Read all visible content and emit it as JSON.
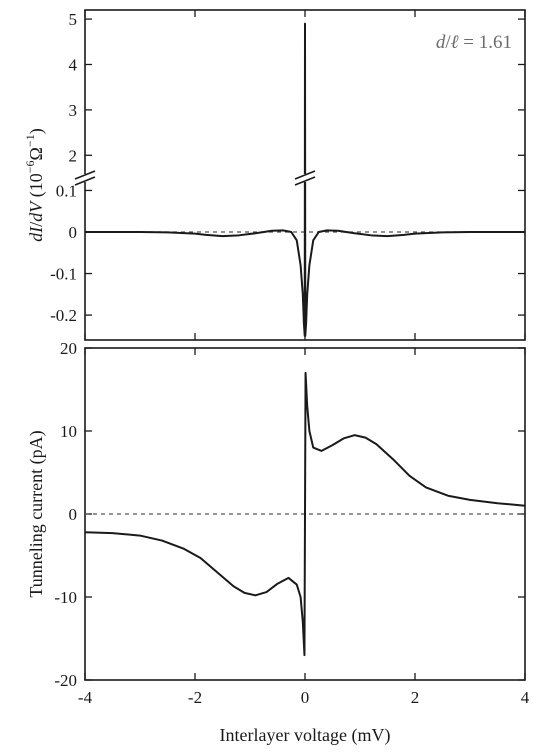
{
  "chart_data": [
    {
      "type": "line",
      "panel": "top",
      "xlim": [
        -4,
        4
      ],
      "ylabel_parts": [
        "dI",
        "/",
        "dV",
        " (10",
        "−6",
        "Ω",
        "−1",
        ")"
      ],
      "annotation_parts": [
        "d",
        "/",
        "ℓ",
        " = 1.61"
      ],
      "upper_segment": {
        "ylim": [
          1.5,
          5.2
        ],
        "yticks": [
          "2",
          "3",
          "4",
          "5"
        ]
      },
      "lower_segment": {
        "ylim": [
          -0.26,
          0.13
        ],
        "yticks": [
          "-0.2",
          "-0.1",
          "0",
          "0.1"
        ]
      },
      "zero_reference": {
        "y": 0,
        "style": "dashed"
      },
      "series": [
        {
          "x": [
            -4.0,
            -3.0,
            -2.5,
            -2.0,
            -1.8,
            -1.5,
            -1.2,
            -0.9,
            -0.6,
            -0.4,
            -0.25,
            -0.15,
            -0.08,
            -0.04,
            -0.02,
            -0.005,
            0.0,
            0.005,
            0.02,
            0.04,
            0.08,
            0.15,
            0.25,
            0.4,
            0.6,
            0.9,
            1.2,
            1.5,
            1.8,
            2.0,
            2.5,
            3.0,
            4.0
          ],
          "y": [
            0.0,
            0.0,
            -0.001,
            -0.004,
            -0.007,
            -0.01,
            -0.008,
            -0.003,
            0.003,
            0.004,
            0.0,
            -0.02,
            -0.08,
            -0.15,
            -0.22,
            -0.25,
            4.9,
            -0.25,
            -0.22,
            -0.15,
            -0.08,
            -0.02,
            0.0,
            0.004,
            0.003,
            -0.003,
            -0.008,
            -0.01,
            -0.007,
            -0.004,
            -0.001,
            0.0,
            0.0
          ]
        }
      ]
    },
    {
      "type": "line",
      "panel": "bottom",
      "xlabel": "Interlayer voltage (mV)",
      "ylabel": "Tunneling current (pA)",
      "xlim": [
        -4,
        4
      ],
      "ylim": [
        -20,
        20
      ],
      "xticks": [
        -4,
        -2,
        0,
        2,
        4
      ],
      "yticks": [
        -20,
        -10,
        0,
        10,
        20
      ],
      "zero_reference": {
        "y": 0,
        "style": "dashed"
      },
      "series": [
        {
          "x": [
            -4.0,
            -3.5,
            -3.0,
            -2.6,
            -2.2,
            -1.9,
            -1.6,
            -1.3,
            -1.1,
            -0.9,
            -0.7,
            -0.5,
            -0.3,
            -0.15,
            -0.08,
            -0.04,
            -0.01,
            0.0,
            0.01,
            0.04,
            0.08,
            0.15,
            0.3,
            0.5,
            0.7,
            0.9,
            1.1,
            1.3,
            1.6,
            1.9,
            2.2,
            2.6,
            3.0,
            3.5,
            4.0
          ],
          "y": [
            -2.2,
            -2.3,
            -2.6,
            -3.2,
            -4.2,
            -5.3,
            -7.0,
            -8.7,
            -9.5,
            -9.8,
            -9.4,
            -8.4,
            -7.7,
            -8.5,
            -10.0,
            -13.0,
            -17.0,
            0.0,
            17.0,
            13.0,
            10.0,
            8.0,
            7.6,
            8.3,
            9.1,
            9.5,
            9.2,
            8.4,
            6.6,
            4.6,
            3.2,
            2.2,
            1.7,
            1.3,
            1.0
          ]
        }
      ]
    }
  ]
}
